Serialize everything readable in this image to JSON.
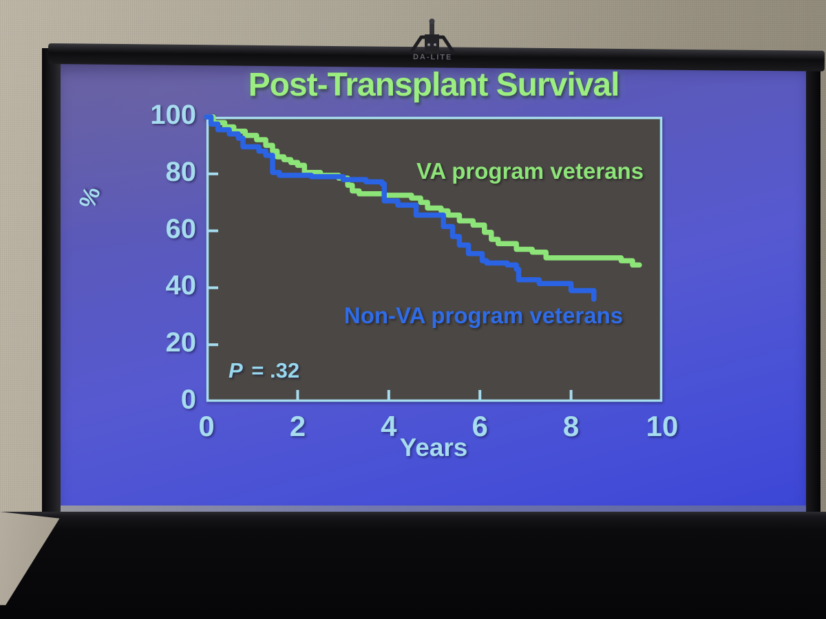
{
  "scene": {
    "screen_brand": "DA-LITE",
    "wall_color": "#aaa494",
    "table_color": "#0b0b0d",
    "frame_color": "#141416",
    "screen_blue_top": "#655ea6",
    "screen_blue_bottom": "#3c46d6"
  },
  "slide": {
    "title": "Post-Transplant Survival",
    "title_color": "#9bee7f",
    "axis_color": "#a6dcee",
    "plot_bg": "#4b4744",
    "plot_border": "#a6dcee"
  },
  "chart_data": {
    "type": "line",
    "subtype": "kaplan-meier-step-survival",
    "title": "Post-Transplant Survival",
    "xlabel": "Years",
    "ylabel": "%",
    "xlim": [
      0,
      10
    ],
    "ylim": [
      0,
      100
    ],
    "xticks": [
      0,
      2,
      4,
      6,
      8,
      10
    ],
    "yticks": [
      0,
      20,
      40,
      60,
      80,
      100
    ],
    "grid": false,
    "legend_position": "labels-inside-plot",
    "p_italic": "P",
    "p_rest": " = .32",
    "series": [
      {
        "name": "VA program veterans",
        "color": "#8de478",
        "steps": [
          [
            0,
            100
          ],
          [
            0.15,
            98
          ],
          [
            0.4,
            96.5
          ],
          [
            0.6,
            95
          ],
          [
            0.85,
            93.5
          ],
          [
            1.1,
            92
          ],
          [
            1.3,
            90
          ],
          [
            1.45,
            88
          ],
          [
            1.55,
            86
          ],
          [
            1.7,
            85
          ],
          [
            1.85,
            84
          ],
          [
            2.0,
            83
          ],
          [
            2.15,
            80.5
          ],
          [
            2.5,
            79.5
          ],
          [
            2.9,
            78.5
          ],
          [
            3.1,
            76
          ],
          [
            3.2,
            74
          ],
          [
            3.35,
            73
          ],
          [
            3.9,
            72.5
          ],
          [
            4.5,
            71.5
          ],
          [
            4.7,
            70
          ],
          [
            4.85,
            68
          ],
          [
            5.15,
            67
          ],
          [
            5.3,
            65.5
          ],
          [
            5.55,
            63.5
          ],
          [
            5.85,
            62
          ],
          [
            6.1,
            59.5
          ],
          [
            6.25,
            57
          ],
          [
            6.4,
            55.5
          ],
          [
            6.8,
            53.5
          ],
          [
            7.15,
            52.5
          ],
          [
            7.45,
            50.5
          ],
          [
            9.1,
            49.5
          ],
          [
            9.35,
            48
          ],
          [
            9.5,
            48
          ]
        ]
      },
      {
        "name": "Non-VA program veterans",
        "color": "#2a63e4",
        "steps": [
          [
            0,
            100
          ],
          [
            0.1,
            97.5
          ],
          [
            0.25,
            95.5
          ],
          [
            0.5,
            94
          ],
          [
            0.7,
            92.5
          ],
          [
            0.8,
            89.5
          ],
          [
            1.15,
            88
          ],
          [
            1.3,
            86.5
          ],
          [
            1.45,
            80.5
          ],
          [
            1.6,
            79.5
          ],
          [
            2.3,
            79
          ],
          [
            3.0,
            78
          ],
          [
            3.5,
            77.2
          ],
          [
            3.85,
            76.5
          ],
          [
            3.9,
            70.5
          ],
          [
            4.2,
            69
          ],
          [
            4.6,
            65.5
          ],
          [
            5.2,
            61.5
          ],
          [
            5.4,
            58
          ],
          [
            5.55,
            55
          ],
          [
            5.75,
            52
          ],
          [
            6.05,
            49.5
          ],
          [
            6.15,
            48.7
          ],
          [
            6.6,
            48
          ],
          [
            6.8,
            46.5
          ],
          [
            6.85,
            42.8
          ],
          [
            7.3,
            41.5
          ],
          [
            8.0,
            39
          ],
          [
            8.5,
            36
          ]
        ]
      }
    ]
  }
}
